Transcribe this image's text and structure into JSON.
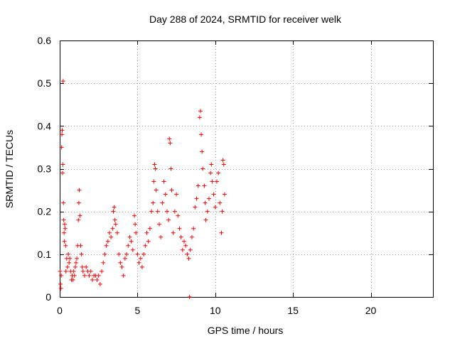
{
  "chart_data": {
    "type": "scatter",
    "title": "Day 288 of 2024, SRMTID for receiver welk",
    "xlabel": "GPS time / hours",
    "ylabel": "SRMTID / TECUs",
    "xlim": [
      0,
      24
    ],
    "ylim": [
      0,
      0.6
    ],
    "xticks": [
      0,
      5,
      10,
      15,
      20
    ],
    "yticks": [
      0,
      0.1,
      0.2,
      0.3,
      0.4,
      0.5,
      0.6
    ],
    "xtick_labels": [
      "0",
      "5",
      "10",
      "15",
      "20"
    ],
    "ytick_labels": [
      "0",
      "0.1",
      "0.2",
      "0.3",
      "0.4",
      "0.5",
      "0.6"
    ],
    "grid": true,
    "marker": "+",
    "color": "#ff0000",
    "series": [
      {
        "name": "SRMTID",
        "points": [
          [
            0.02,
            0.06
          ],
          [
            0.05,
            0.03
          ],
          [
            0.08,
            0.02
          ],
          [
            0.1,
            0.05
          ],
          [
            0.12,
            0.35
          ],
          [
            0.14,
            0.38
          ],
          [
            0.16,
            0.39
          ],
          [
            0.18,
            0.29
          ],
          [
            0.2,
            0.31
          ],
          [
            0.22,
            0.505
          ],
          [
            0.24,
            0.22
          ],
          [
            0.26,
            0.18
          ],
          [
            0.28,
            0.15
          ],
          [
            0.3,
            0.13
          ],
          [
            0.32,
            0.17
          ],
          [
            0.35,
            0.16
          ],
          [
            0.38,
            0.12
          ],
          [
            0.4,
            0.06
          ],
          [
            0.45,
            0.09
          ],
          [
            0.5,
            0.07
          ],
          [
            0.55,
            0.1
          ],
          [
            0.6,
            0.08
          ],
          [
            0.65,
            0.09
          ],
          [
            0.7,
            0.06
          ],
          [
            0.75,
            0.04
          ],
          [
            0.8,
            0.05
          ],
          [
            0.85,
            0.04
          ],
          [
            0.9,
            0.06
          ],
          [
            0.95,
            0.05
          ],
          [
            1.0,
            0.07
          ],
          [
            1.05,
            0.08
          ],
          [
            1.1,
            0.09
          ],
          [
            1.15,
            0.12
          ],
          [
            1.2,
            0.18
          ],
          [
            1.23,
            0.22
          ],
          [
            1.26,
            0.25
          ],
          [
            1.3,
            0.19
          ],
          [
            1.35,
            0.12
          ],
          [
            1.4,
            0.1
          ],
          [
            1.45,
            0.07
          ],
          [
            1.5,
            0.06
          ],
          [
            1.6,
            0.05
          ],
          [
            1.7,
            0.07
          ],
          [
            1.8,
            0.06
          ],
          [
            1.9,
            0.05
          ],
          [
            2.0,
            0.06
          ],
          [
            2.1,
            0.04
          ],
          [
            2.2,
            0.05
          ],
          [
            2.3,
            0.05
          ],
          [
            2.4,
            0.04
          ],
          [
            2.5,
            0.05
          ],
          [
            2.6,
            0.03
          ],
          [
            2.7,
            0.06
          ],
          [
            2.8,
            0.08
          ],
          [
            2.9,
            0.1
          ],
          [
            3.0,
            0.12
          ],
          [
            3.1,
            0.13
          ],
          [
            3.2,
            0.15
          ],
          [
            3.3,
            0.14
          ],
          [
            3.4,
            0.16
          ],
          [
            3.45,
            0.2
          ],
          [
            3.5,
            0.21
          ],
          [
            3.55,
            0.18
          ],
          [
            3.6,
            0.17
          ],
          [
            3.7,
            0.15
          ],
          [
            3.8,
            0.1
          ],
          [
            3.9,
            0.08
          ],
          [
            4.0,
            0.07
          ],
          [
            4.1,
            0.05
          ],
          [
            4.2,
            0.09
          ],
          [
            4.3,
            0.1
          ],
          [
            4.4,
            0.12
          ],
          [
            4.5,
            0.14
          ],
          [
            4.6,
            0.13
          ],
          [
            4.7,
            0.11
          ],
          [
            4.8,
            0.19
          ],
          [
            4.85,
            0.17
          ],
          [
            4.9,
            0.15
          ],
          [
            5.0,
            0.1
          ],
          [
            5.1,
            0.08
          ],
          [
            5.2,
            0.09
          ],
          [
            5.3,
            0.07
          ],
          [
            5.4,
            0.1
          ],
          [
            5.5,
            0.12
          ],
          [
            5.6,
            0.15
          ],
          [
            5.7,
            0.13
          ],
          [
            5.8,
            0.16
          ],
          [
            5.9,
            0.2
          ],
          [
            6.0,
            0.22
          ],
          [
            6.05,
            0.27
          ],
          [
            6.1,
            0.31
          ],
          [
            6.15,
            0.3
          ],
          [
            6.2,
            0.25
          ],
          [
            6.3,
            0.2
          ],
          [
            6.4,
            0.17
          ],
          [
            6.5,
            0.14
          ],
          [
            6.6,
            0.22
          ],
          [
            6.7,
            0.27
          ],
          [
            6.8,
            0.24
          ],
          [
            6.9,
            0.2
          ],
          [
            7.0,
            0.18
          ],
          [
            7.05,
            0.37
          ],
          [
            7.1,
            0.36
          ],
          [
            7.15,
            0.3
          ],
          [
            7.2,
            0.25
          ],
          [
            7.3,
            0.15
          ],
          [
            7.4,
            0.2
          ],
          [
            7.5,
            0.24
          ],
          [
            7.6,
            0.19
          ],
          [
            7.7,
            0.16
          ],
          [
            7.8,
            0.14
          ],
          [
            7.9,
            0.11
          ],
          [
            8.0,
            0.13
          ],
          [
            8.1,
            0.12
          ],
          [
            8.2,
            0.1
          ],
          [
            8.3,
            0.09
          ],
          [
            8.35,
            0.0
          ],
          [
            8.4,
            0.11
          ],
          [
            8.5,
            0.14
          ],
          [
            8.6,
            0.16
          ],
          [
            8.7,
            0.21
          ],
          [
            8.8,
            0.23
          ],
          [
            8.9,
            0.26
          ],
          [
            9.0,
            0.42
          ],
          [
            9.05,
            0.435
          ],
          [
            9.1,
            0.38
          ],
          [
            9.15,
            0.34
          ],
          [
            9.2,
            0.3
          ],
          [
            9.3,
            0.26
          ],
          [
            9.35,
            0.22
          ],
          [
            9.4,
            0.18
          ],
          [
            9.5,
            0.2
          ],
          [
            9.6,
            0.23
          ],
          [
            9.7,
            0.29
          ],
          [
            9.75,
            0.31
          ],
          [
            9.8,
            0.27
          ],
          [
            9.9,
            0.24
          ],
          [
            10.0,
            0.21
          ],
          [
            10.1,
            0.27
          ],
          [
            10.2,
            0.29
          ],
          [
            10.3,
            0.22
          ],
          [
            10.4,
            0.15
          ],
          [
            10.45,
            0.2
          ],
          [
            10.5,
            0.32
          ],
          [
            10.55,
            0.31
          ],
          [
            10.6,
            0.24
          ]
        ]
      }
    ]
  }
}
